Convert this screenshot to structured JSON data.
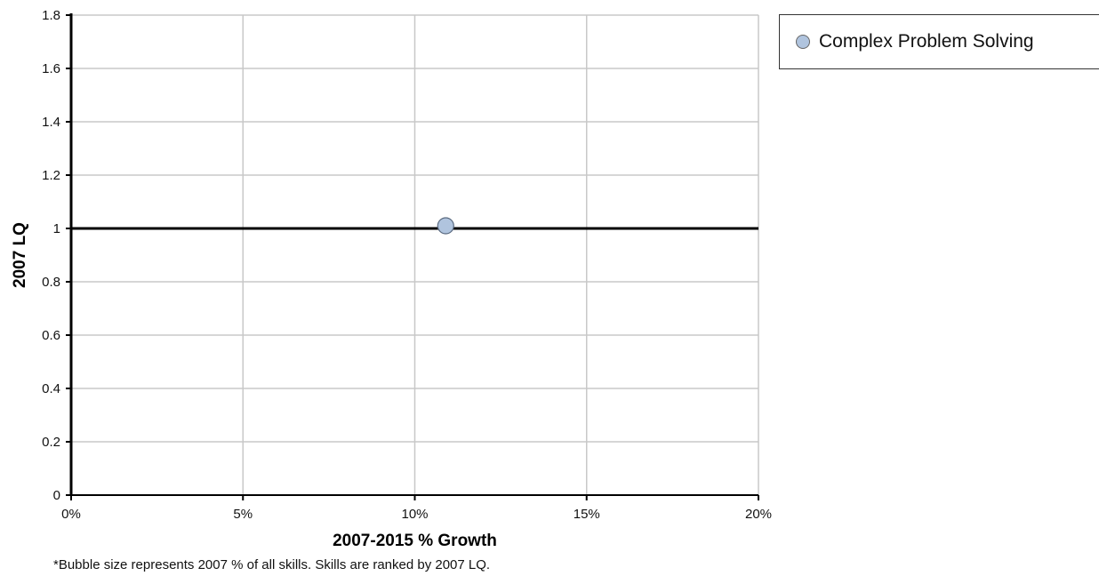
{
  "chart_data": {
    "type": "scatter",
    "xlabel": "2007-2015 % Growth",
    "ylabel": "2007 LQ",
    "xlim": [
      0,
      20
    ],
    "ylim": [
      0,
      1.8
    ],
    "x_ticks": [
      0,
      5,
      10,
      15,
      20
    ],
    "x_tick_labels": [
      "0%",
      "5%",
      "10%",
      "15%",
      "20%"
    ],
    "y_ticks": [
      0,
      0.2,
      0.4,
      0.6,
      0.8,
      1,
      1.2,
      1.4,
      1.6,
      1.8
    ],
    "y_tick_labels": [
      "0",
      "0.2",
      "0.4",
      "0.6",
      "0.8",
      "1",
      "1.2",
      "1.4",
      "1.6",
      "1.8"
    ],
    "reference_line_y": 1,
    "grid": true,
    "legend_position": "top-right",
    "series": [
      {
        "name": "Complex Problem Solving",
        "color": "#b0c4de",
        "points": [
          {
            "x": 10.9,
            "y": 1.01
          }
        ]
      }
    ]
  },
  "footnote": "*Bubble size represents 2007 % of all skills. Skills are ranked by 2007 LQ."
}
